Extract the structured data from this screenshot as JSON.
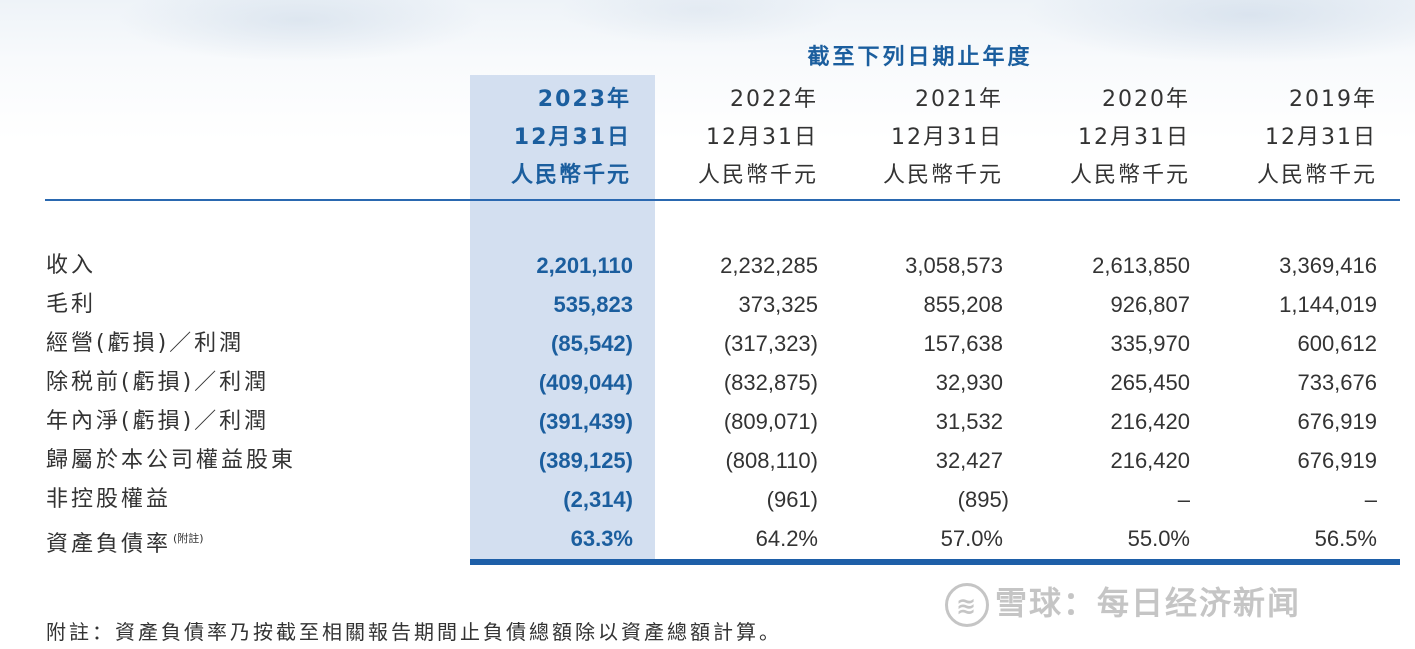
{
  "period_title": "截至下列日期止年度",
  "columns": [
    {
      "year": "2023年",
      "date": "12月31日",
      "unit": "人民幣千元"
    },
    {
      "year": "2022年",
      "date": "12月31日",
      "unit": "人民幣千元"
    },
    {
      "year": "2021年",
      "date": "12月31日",
      "unit": "人民幣千元"
    },
    {
      "year": "2020年",
      "date": "12月31日",
      "unit": "人民幣千元"
    },
    {
      "year": "2019年",
      "date": "12月31日",
      "unit": "人民幣千元"
    }
  ],
  "rows": [
    {
      "label": "收入",
      "values": [
        "2,201,110",
        "2,232,285",
        "3,058,573",
        "2,613,850",
        "3,369,416"
      ]
    },
    {
      "label": "毛利",
      "values": [
        "535,823",
        "373,325",
        "855,208",
        "926,807",
        "1,144,019"
      ]
    },
    {
      "label": "經營(虧損)／利潤",
      "values": [
        "(85,542)",
        "(317,323)",
        "157,638",
        "335,970",
        "600,612"
      ]
    },
    {
      "label": "除税前(虧損)／利潤",
      "values": [
        "(409,044)",
        "(832,875)",
        "32,930",
        "265,450",
        "733,676"
      ]
    },
    {
      "label": "年內淨(虧損)／利潤",
      "values": [
        "(391,439)",
        "(809,071)",
        "31,532",
        "216,420",
        "676,919"
      ]
    },
    {
      "label": "歸屬於本公司權益股東",
      "values": [
        "(389,125)",
        "(808,110)",
        "32,427",
        "216,420",
        "676,919"
      ]
    },
    {
      "label": "非控股權益",
      "values": [
        "(2,314)",
        "(961)",
        "(895)",
        "–",
        "–"
      ]
    },
    {
      "label": "資產負債率",
      "label_note": "(附註)",
      "values": [
        "63.3%",
        "64.2%",
        "57.0%",
        "55.0%",
        "56.5%"
      ]
    }
  ],
  "footnote": "附註：資產負債率乃按截至相關報告期間止負債總額除以資產總額計算。",
  "watermark": {
    "logo_glyph": "≋",
    "text": "雪球：每日经济新闻"
  },
  "colors": {
    "accent": "#1b5e9e",
    "highlight_column": "#d3dff0",
    "rule": "#1e5fa8"
  }
}
